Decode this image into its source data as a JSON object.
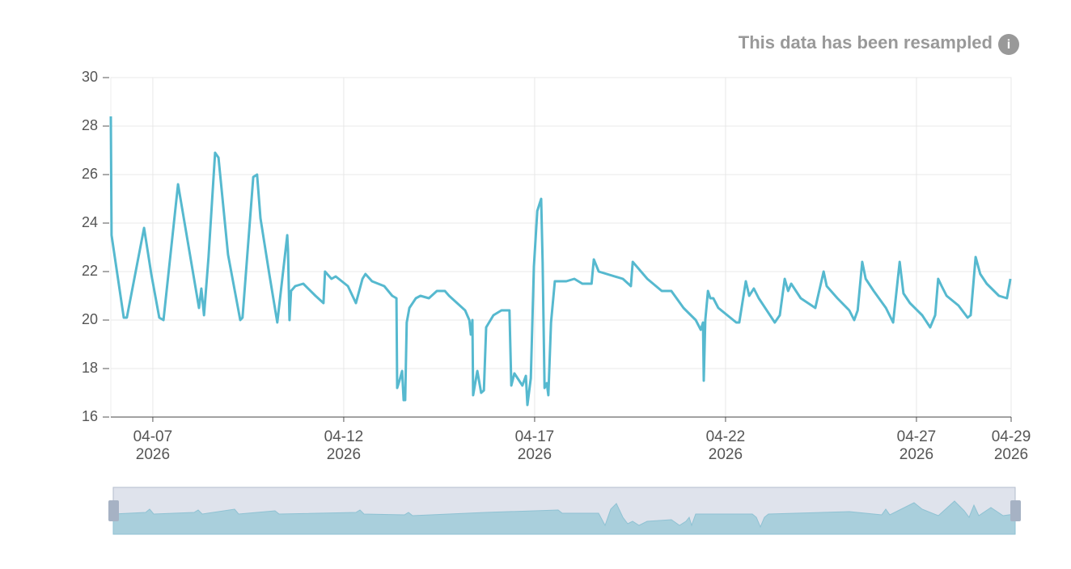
{
  "chart_data": {
    "type": "line",
    "annotation": "This data has been resampled",
    "x": [
      5.9,
      5.92,
      6.07,
      6.24,
      6.32,
      6.77,
      6.96,
      7.17,
      7.28,
      7.66,
      8.21,
      8.27,
      8.34,
      8.46,
      8.63,
      8.72,
      8.97,
      9.29,
      9.35,
      9.63,
      9.73,
      9.82,
      10.05,
      10.26,
      10.52,
      10.54,
      10.58,
      10.62,
      10.73,
      10.94,
      11.26,
      11.47,
      11.51,
      11.68,
      11.79,
      12.11,
      12.32,
      12.49,
      12.57,
      12.74,
      13.06,
      13.27,
      13.38,
      13.4,
      13.46,
      13.53,
      13.57,
      13.61,
      13.65,
      13.72,
      13.89,
      14.01,
      14.23,
      14.44,
      14.65,
      14.76,
      14.97,
      15.18,
      15.29,
      15.33,
      15.37,
      15.39,
      15.5,
      15.6,
      15.67,
      15.73,
      15.92,
      16.13,
      16.34,
      16.39,
      16.47,
      16.68,
      16.77,
      16.81,
      16.9,
      16.98,
      17.07,
      17.17,
      17.21,
      17.26,
      17.32,
      17.36,
      17.43,
      17.53,
      17.83,
      18.04,
      18.25,
      18.49,
      18.55,
      18.68,
      19.31,
      19.52,
      19.57,
      19.95,
      20.33,
      20.58,
      20.9,
      21.22,
      21.35,
      21.41,
      21.43,
      21.47,
      21.54,
      21.6,
      21.68,
      21.81,
      22.28,
      22.36,
      22.53,
      22.62,
      22.74,
      22.87,
      23.29,
      23.42,
      23.55,
      23.64,
      23.72,
      23.97,
      24.35,
      24.57,
      24.65,
      24.93,
      25.24,
      25.37,
      25.46,
      25.58,
      25.67,
      25.88,
      26.2,
      26.39,
      26.56,
      26.66,
      26.83,
      27.15,
      27.36,
      27.49,
      27.57,
      27.66,
      27.79,
      28.1,
      28.34,
      28.42,
      28.55,
      28.67,
      28.84,
      29.16,
      29.37,
      29.46
    ],
    "series": [
      {
        "color": "#56b9cf",
        "values": [
          28.4,
          23.5,
          21.9,
          20.1,
          20.1,
          23.8,
          21.9,
          20.1,
          20.0,
          25.6,
          20.5,
          21.3,
          20.2,
          22.6,
          26.9,
          26.7,
          22.7,
          20.0,
          20.1,
          25.9,
          26.0,
          24.2,
          21.9,
          19.9,
          23.5,
          22.9,
          20.0,
          21.2,
          21.4,
          21.5,
          21.0,
          20.7,
          22.0,
          21.7,
          21.8,
          21.4,
          20.7,
          21.7,
          21.9,
          21.6,
          21.4,
          21.0,
          20.9,
          17.2,
          17.5,
          17.9,
          16.7,
          16.7,
          19.9,
          20.5,
          20.9,
          21.0,
          20.9,
          21.2,
          21.2,
          21.0,
          20.7,
          20.4,
          20.0,
          19.4,
          20.0,
          16.9,
          17.9,
          17.0,
          17.1,
          19.7,
          20.2,
          20.4,
          20.4,
          17.3,
          17.8,
          17.3,
          17.7,
          16.5,
          17.6,
          22.2,
          24.5,
          25.0,
          22.4,
          17.2,
          17.4,
          16.9,
          19.9,
          21.6,
          21.6,
          21.7,
          21.5,
          21.5,
          22.5,
          22.0,
          21.7,
          21.4,
          22.4,
          21.7,
          21.2,
          21.2,
          20.5,
          20.0,
          19.6,
          19.9,
          17.5,
          20.0,
          21.2,
          20.9,
          20.9,
          20.5,
          19.9,
          19.9,
          21.6,
          21.0,
          21.3,
          20.9,
          19.9,
          20.2,
          21.7,
          21.2,
          21.5,
          20.9,
          20.5,
          22.0,
          21.4,
          20.9,
          20.4,
          20.0,
          20.4,
          22.4,
          21.7,
          21.2,
          20.5,
          19.9,
          22.4,
          21.1,
          20.7,
          20.2,
          19.7,
          20.2,
          21.7,
          21.4,
          21.0,
          20.6,
          20.1,
          20.2,
          22.6,
          21.9,
          21.5,
          21.0,
          20.9,
          21.7
        ]
      }
    ],
    "xlim": [
      5.9,
      29.48
    ],
    "xticks": [
      {
        "value": 7,
        "label": "04-07\n2026"
      },
      {
        "value": 12,
        "label": "04-12\n2026"
      },
      {
        "value": 17,
        "label": "04-17\n2026"
      },
      {
        "value": 22,
        "label": "04-22\n2026"
      },
      {
        "value": 27,
        "label": "04-27\n2026"
      },
      {
        "value": 29.48,
        "label": "04-29\n2026"
      }
    ],
    "ylim": [
      16,
      30
    ],
    "yticks": [
      16,
      18,
      20,
      22,
      24,
      26,
      28,
      30
    ],
    "grid": true
  }
}
